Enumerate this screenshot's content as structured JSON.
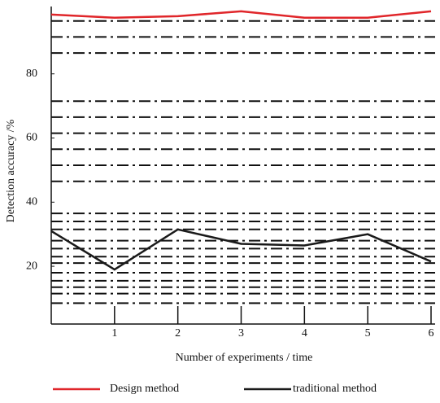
{
  "chart_data": {
    "type": "line",
    "x_label": "Number of experiments / time",
    "y_label": "Detection accuracy /%",
    "x": [
      0,
      1,
      2,
      3,
      4,
      5,
      6
    ],
    "xlim": [
      0,
      6
    ],
    "xticks": [
      1,
      2,
      3,
      4,
      5,
      6
    ],
    "ylim": [
      2,
      101
    ],
    "yticks": [
      20,
      40,
      60,
      80
    ],
    "minor_grid": [
      96.5,
      91.5,
      86.5,
      71.5,
      66.5,
      61.5,
      56.5,
      51.5,
      46.5,
      36.5,
      34,
      31.5,
      28,
      25.5,
      23,
      21,
      18,
      15.5,
      13.5,
      11.5,
      8.5
    ],
    "series": [
      {
        "name": "Design method",
        "color": "#e0262a",
        "values": [
          98.5,
          97.5,
          98,
          99.5,
          97.5,
          97.5,
          99.5
        ]
      },
      {
        "name": "traditional method",
        "color": "#1a1a1a",
        "values": [
          31,
          19,
          31.5,
          27,
          26.5,
          30,
          21.5
        ]
      }
    ]
  }
}
